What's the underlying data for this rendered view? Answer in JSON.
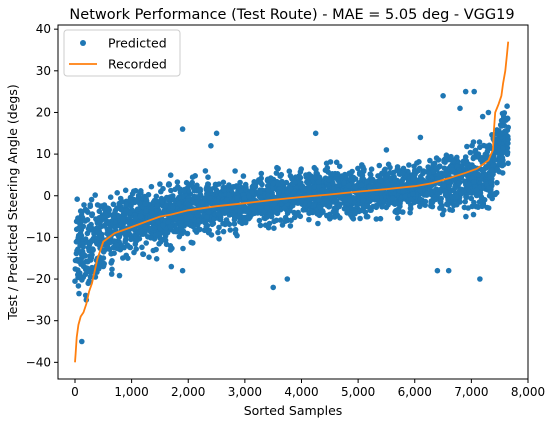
{
  "chart_data": {
    "type": "scatter",
    "title": "Network Performance (Test Route) - MAE = 5.05 deg - VGG19",
    "xlabel": "Sorted Samples",
    "ylabel": "Test / Predicted Steering Angle (degs)",
    "xlim": [
      -300,
      8000
    ],
    "ylim": [
      -44,
      41
    ],
    "x_ticks": [
      0,
      1000,
      2000,
      3000,
      4000,
      5000,
      6000,
      7000,
      8000
    ],
    "x_tick_labels": [
      "0",
      "1,000",
      "2,000",
      "3,000",
      "4,000",
      "5,000",
      "6,000",
      "7,000",
      "8,000"
    ],
    "y_ticks": [
      -40,
      -30,
      -20,
      -10,
      0,
      10,
      20,
      30,
      40
    ],
    "y_tick_labels": [
      "−40",
      "−30",
      "−20",
      "−10",
      "0",
      "10",
      "20",
      "30",
      "40"
    ],
    "grid": false,
    "legend_position": "top-left",
    "n_samples": 7650,
    "series": [
      {
        "name": "Predicted",
        "kind": "scatter",
        "color": "#1f77b4",
        "band_center": [
          [
            0,
            -14
          ],
          [
            100,
            -12
          ],
          [
            300,
            -12
          ],
          [
            500,
            -10
          ],
          [
            1000,
            -6
          ],
          [
            1500,
            -5
          ],
          [
            2000,
            -3
          ],
          [
            3000,
            -1.5
          ],
          [
            4000,
            0
          ],
          [
            5000,
            1
          ],
          [
            6000,
            2
          ],
          [
            6500,
            3
          ],
          [
            7000,
            4
          ],
          [
            7300,
            5
          ],
          [
            7400,
            8
          ],
          [
            7500,
            12
          ],
          [
            7650,
            14
          ]
        ],
        "band_spread": [
          [
            0,
            12
          ],
          [
            500,
            10
          ],
          [
            1000,
            8
          ],
          [
            3000,
            6
          ],
          [
            6000,
            6
          ],
          [
            7000,
            7
          ],
          [
            7400,
            10
          ],
          [
            7650,
            8
          ]
        ],
        "outliers": [
          [
            1900,
            16
          ],
          [
            2500,
            15
          ],
          [
            4250,
            15
          ],
          [
            6500,
            24
          ],
          [
            6900,
            25
          ],
          [
            7050,
            25
          ],
          [
            7300,
            20
          ],
          [
            6400,
            -18
          ],
          [
            6600,
            -18
          ],
          [
            7150,
            -20
          ],
          [
            3500,
            -22
          ],
          [
            3750,
            -20
          ],
          [
            1900,
            -18
          ],
          [
            1700,
            -17
          ],
          [
            200,
            -25
          ],
          [
            120,
            -35
          ],
          [
            2400,
            12
          ],
          [
            5500,
            11
          ],
          [
            6100,
            14
          ],
          [
            6800,
            21
          ],
          [
            7200,
            19
          ],
          [
            1200,
            -14
          ]
        ]
      },
      {
        "name": "Recorded",
        "kind": "line",
        "color": "#ff7f0e",
        "points": [
          [
            0,
            -40
          ],
          [
            10,
            -38
          ],
          [
            30,
            -34
          ],
          [
            60,
            -31
          ],
          [
            100,
            -29
          ],
          [
            150,
            -28
          ],
          [
            200,
            -26
          ],
          [
            250,
            -23
          ],
          [
            300,
            -21
          ],
          [
            350,
            -18
          ],
          [
            400,
            -15
          ],
          [
            450,
            -13
          ],
          [
            500,
            -11
          ],
          [
            600,
            -10
          ],
          [
            700,
            -9
          ],
          [
            900,
            -8
          ],
          [
            1100,
            -7
          ],
          [
            1300,
            -6
          ],
          [
            1500,
            -5
          ],
          [
            1700,
            -4.5
          ],
          [
            2000,
            -3.5
          ],
          [
            2500,
            -2.5
          ],
          [
            3000,
            -1.8
          ],
          [
            3500,
            -1
          ],
          [
            4000,
            -0.3
          ],
          [
            4500,
            0.3
          ],
          [
            5000,
            1
          ],
          [
            5500,
            1.6
          ],
          [
            6000,
            2.3
          ],
          [
            6300,
            3
          ],
          [
            6600,
            4.2
          ],
          [
            6900,
            5.5
          ],
          [
            7100,
            6.5
          ],
          [
            7300,
            8.5
          ],
          [
            7380,
            11
          ],
          [
            7400,
            16
          ],
          [
            7420,
            20
          ],
          [
            7480,
            22
          ],
          [
            7530,
            24
          ],
          [
            7560,
            27
          ],
          [
            7600,
            30
          ],
          [
            7630,
            34
          ],
          [
            7650,
            37
          ]
        ]
      }
    ]
  }
}
